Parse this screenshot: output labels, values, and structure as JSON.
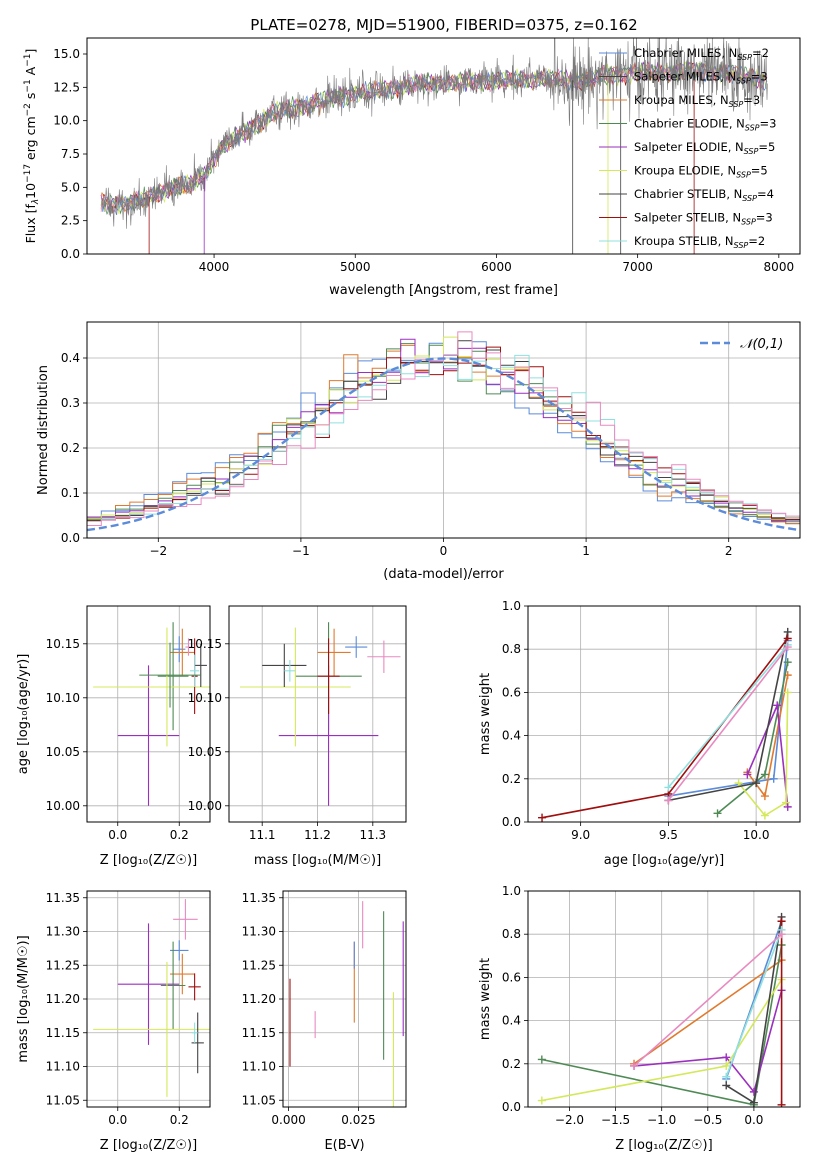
{
  "title": "PLATE=0278, MJD=51900, FIBERID=0375, z=0.162",
  "colors": [
    "#5b8bd9",
    "#e07a2e",
    "#4f8a55",
    "#9b2fbf",
    "#d4e85a",
    "#444444",
    "#a00e0e",
    "#8fe0df",
    "#e88ac0"
  ],
  "chart_data": [
    {
      "type": "line",
      "id": "spectrum",
      "xlabel": "wavelength [Angstrom, rest frame]",
      "ylabel_parts": [
        "Flux [f",
        "λ",
        "10",
        "−17",
        " erg cm",
        "−2",
        " s",
        "−1",
        " A",
        "−1",
        "]"
      ],
      "xlim": [
        3100,
        8150
      ],
      "ylim": [
        0,
        16.2
      ],
      "xticks": [
        4000,
        5000,
        6000,
        7000,
        8000
      ],
      "yticks": [
        0.0,
        2.5,
        5.0,
        7.5,
        10.0,
        12.5,
        15.0
      ],
      "x_range": [
        3200,
        7920
      ],
      "continuum_points": [
        [
          3200,
          3.8
        ],
        [
          3400,
          3.8
        ],
        [
          3550,
          4.3
        ],
        [
          3700,
          5.0
        ],
        [
          3850,
          5.2
        ],
        [
          3950,
          6.2
        ],
        [
          4050,
          8.0
        ],
        [
          4200,
          9.0
        ],
        [
          4400,
          10.5
        ],
        [
          4600,
          11.0
        ],
        [
          4800,
          11.6
        ],
        [
          5000,
          12.0
        ],
        [
          5200,
          12.3
        ],
        [
          5400,
          12.7
        ],
        [
          5600,
          12.8
        ],
        [
          5800,
          12.9
        ],
        [
          6000,
          13.0
        ],
        [
          6200,
          13.1
        ],
        [
          6400,
          13.1
        ],
        [
          6600,
          13.0
        ],
        [
          6800,
          13.4
        ],
        [
          7000,
          13.6
        ],
        [
          7200,
          13.6
        ],
        [
          7400,
          13.7
        ],
        [
          7600,
          13.6
        ],
        [
          7800,
          13.2
        ],
        [
          7920,
          13.0
        ]
      ],
      "legend": [
        {
          "name": "Chabrier MILES",
          "n": "2"
        },
        {
          "name": "Salpeter MILES",
          "n": "3"
        },
        {
          "name": "Kroupa MILES",
          "n": "3"
        },
        {
          "name": "Chabrier ELODIE",
          "n": "3"
        },
        {
          "name": "Salpeter ELODIE",
          "n": "5"
        },
        {
          "name": "Kroupa ELODIE",
          "n": "5"
        },
        {
          "name": "Chabrier STELIB",
          "n": "4"
        },
        {
          "name": "Salpeter STELIB",
          "n": "3"
        },
        {
          "name": "Kroupa STELIB",
          "n": "2"
        }
      ],
      "legend_colors": [
        "#5b8bd9",
        "#444444",
        "#e07a2e",
        "#4f8a55",
        "#9b2fbf",
        "#d4e85a",
        "#444444",
        "#a00e0e",
        "#8fe0df"
      ],
      "legend_position": "top-right",
      "legend_sub": "SSP"
    },
    {
      "type": "histogram",
      "id": "residuals",
      "xlabel": "(data-model)/error",
      "ylabel": "Normed distribution",
      "xlim": [
        -2.5,
        2.5
      ],
      "ylim": [
        0,
        0.48
      ],
      "xticks": [
        -2,
        -1,
        0,
        1,
        2
      ],
      "yticks": [
        0.0,
        0.1,
        0.2,
        0.3,
        0.4
      ],
      "bin_width": 0.1,
      "reference_label": "𝒩(0,1)",
      "legend_position": "top-right",
      "grid": true
    },
    {
      "type": "errorbar",
      "id": "age_vs_z",
      "xlabel": "Z [log₁₀(Z/Z☉)]",
      "ylabel": "age  [log₁₀(age/yr)]",
      "xlim": [
        -0.1,
        0.3
      ],
      "ylim": [
        9.985,
        10.185
      ],
      "xticks": [
        0.0,
        0.2
      ],
      "xticklabels": [
        "0.0",
        "0.2"
      ],
      "yticks": [
        10.0,
        10.05,
        10.1,
        10.15
      ],
      "yticklabels": [
        "10.00",
        "10.05",
        "10.10",
        "10.15"
      ],
      "points": [
        {
          "x": 0.2,
          "xerr": 0.02,
          "y": 10.145,
          "yerr": 0.012,
          "c": 0
        },
        {
          "x": 0.21,
          "xerr": 0.04,
          "y": 10.142,
          "yerr": 0.022,
          "c": 1
        },
        {
          "x": 0.18,
          "xerr": 0.05,
          "y": 10.12,
          "yerr": 0.05,
          "c": 2
        },
        {
          "x": 0.1,
          "xerr": 0.1,
          "y": 10.065,
          "yerr": 0.065,
          "c": 3
        },
        {
          "x": 0.16,
          "xerr": 0.24,
          "y": 10.11,
          "yerr": 0.055,
          "c": 4
        },
        {
          "x": 0.27,
          "xerr": 0.02,
          "y": 10.13,
          "yerr": 0.02,
          "c": 5
        },
        {
          "x": 0.25,
          "xerr": 0.01,
          "y": 10.12,
          "yerr": 0.035,
          "c": 6
        },
        {
          "x": 0.25,
          "xerr": 0.015,
          "y": 10.125,
          "yerr": 0.015,
          "c": 7
        },
        {
          "x": 0.23,
          "xerr": 0.01,
          "y": 10.147,
          "yerr": 0.008,
          "c": 8
        },
        {
          "x": 0.17,
          "xerr": 0.1,
          "y": 10.121,
          "yerr": 0.03,
          "c": 2
        }
      ]
    },
    {
      "type": "errorbar",
      "id": "age_vs_mass",
      "xlabel": "mass [log₁₀(M/M☉)]",
      "ylabel": "",
      "xlim": [
        11.04,
        11.36
      ],
      "ylim": [
        9.985,
        10.185
      ],
      "xticks": [
        11.1,
        11.2,
        11.3
      ],
      "xticklabels": [
        "11.1",
        "11.2",
        "11.3"
      ],
      "yticks": [
        10.0,
        10.05,
        10.1,
        10.15
      ],
      "yticklabels": [
        "10.00",
        "10.05",
        "10.10",
        "10.15"
      ],
      "points": [
        {
          "x": 11.27,
          "xerr": 0.02,
          "y": 10.147,
          "yerr": 0.01,
          "c": 0
        },
        {
          "x": 11.23,
          "xerr": 0.03,
          "y": 10.142,
          "yerr": 0.022,
          "c": 1
        },
        {
          "x": 11.22,
          "xerr": 0.06,
          "y": 10.12,
          "yerr": 0.05,
          "c": 2
        },
        {
          "x": 11.22,
          "xerr": 0.09,
          "y": 10.065,
          "yerr": 0.065,
          "c": 3
        },
        {
          "x": 11.16,
          "xerr": 0.1,
          "y": 10.11,
          "yerr": 0.055,
          "c": 4
        },
        {
          "x": 11.14,
          "xerr": 0.04,
          "y": 10.13,
          "yerr": 0.02,
          "c": 5
        },
        {
          "x": 11.22,
          "xerr": 0.02,
          "y": 10.12,
          "yerr": 0.035,
          "c": 6
        },
        {
          "x": 11.15,
          "xerr": 0.01,
          "y": 10.125,
          "yerr": 0.01,
          "c": 7
        },
        {
          "x": 11.32,
          "xerr": 0.03,
          "y": 10.138,
          "yerr": 0.015,
          "c": 8
        }
      ]
    },
    {
      "type": "line",
      "id": "weight_vs_age",
      "xlabel": "age  [log₁₀(age/yr)]",
      "ylabel": "mass weight",
      "xlim": [
        8.7,
        10.25
      ],
      "ylim": [
        0,
        1.0
      ],
      "xticks": [
        9.0,
        9.5,
        10.0
      ],
      "xticklabels": [
        "9.0",
        "9.5",
        "10.0"
      ],
      "yticks": [
        0.0,
        0.2,
        0.4,
        0.6,
        0.8,
        1.0
      ],
      "yticklabels": [
        "0.0",
        "0.2",
        "0.4",
        "0.6",
        "0.8",
        "1.0"
      ],
      "series": [
        {
          "c": 0,
          "pts": [
            [
              9.5,
              0.12
            ],
            [
              10.1,
              0.2
            ],
            [
              10.18,
              0.84
            ]
          ]
        },
        {
          "c": 1,
          "pts": [
            [
              9.95,
              0.23
            ],
            [
              10.05,
              0.12
            ],
            [
              10.18,
              0.68
            ]
          ]
        },
        {
          "c": 2,
          "pts": [
            [
              9.78,
              0.04
            ],
            [
              10.05,
              0.22
            ],
            [
              10.18,
              0.74
            ]
          ]
        },
        {
          "c": 3,
          "pts": [
            [
              9.95,
              0.22
            ],
            [
              10.12,
              0.54
            ],
            [
              10.18,
              0.07
            ]
          ]
        },
        {
          "c": 4,
          "pts": [
            [
              9.9,
              0.18
            ],
            [
              10.05,
              0.03
            ],
            [
              10.17,
              0.09
            ],
            [
              10.18,
              0.6
            ]
          ]
        },
        {
          "c": 5,
          "pts": [
            [
              9.5,
              0.1
            ],
            [
              10.0,
              0.18
            ],
            [
              10.18,
              0.88
            ]
          ]
        },
        {
          "c": 6,
          "pts": [
            [
              8.78,
              0.02
            ],
            [
              9.5,
              0.13
            ],
            [
              10.18,
              0.85
            ]
          ]
        },
        {
          "c": 7,
          "pts": [
            [
              9.5,
              0.16
            ],
            [
              10.18,
              0.82
            ]
          ]
        },
        {
          "c": 8,
          "pts": [
            [
              9.5,
              0.1
            ],
            [
              10.18,
              0.81
            ]
          ]
        }
      ]
    },
    {
      "type": "errorbar",
      "id": "mass_vs_z",
      "xlabel": "Z [log₁₀(Z/Z☉)]",
      "ylabel": "mass [log₁₀(M/M☉)]",
      "xlim": [
        -0.1,
        0.3
      ],
      "ylim": [
        11.04,
        11.36
      ],
      "xticks": [
        0.0,
        0.2
      ],
      "xticklabels": [
        "0.0",
        "0.2"
      ],
      "yticks": [
        11.05,
        11.1,
        11.15,
        11.2,
        11.25,
        11.3,
        11.35
      ],
      "yticklabels": [
        "11.05",
        "11.10",
        "11.15",
        "11.20",
        "11.25",
        "11.30",
        "11.35"
      ],
      "points": [
        {
          "x": 0.2,
          "xerr": 0.03,
          "y": 11.272,
          "yerr": 0.015,
          "c": 0
        },
        {
          "x": 0.21,
          "xerr": 0.04,
          "y": 11.237,
          "yerr": 0.03,
          "c": 1
        },
        {
          "x": 0.18,
          "xerr": 0.04,
          "y": 11.22,
          "yerr": 0.065,
          "c": 2
        },
        {
          "x": 0.1,
          "xerr": 0.1,
          "y": 11.222,
          "yerr": 0.09,
          "c": 3
        },
        {
          "x": 0.16,
          "xerr": 0.24,
          "y": 11.155,
          "yerr": 0.1,
          "c": 4
        },
        {
          "x": 0.26,
          "xerr": 0.02,
          "y": 11.135,
          "yerr": 0.045,
          "c": 5
        },
        {
          "x": 0.25,
          "xerr": 0.02,
          "y": 11.218,
          "yerr": 0.02,
          "c": 6
        },
        {
          "x": 0.25,
          "xerr": 0.01,
          "y": 11.15,
          "yerr": 0.015,
          "c": 7
        },
        {
          "x": 0.22,
          "xerr": 0.04,
          "y": 11.318,
          "yerr": 0.03,
          "c": 8
        }
      ]
    },
    {
      "type": "errorbar",
      "id": "mass_vs_ebv",
      "xlabel": "E(B-V)",
      "ylabel": "",
      "xlim": [
        -0.002,
        0.042
      ],
      "ylim": [
        11.04,
        11.36
      ],
      "xticks": [
        0.0,
        0.025
      ],
      "xticklabels": [
        "0.000",
        "0.025"
      ],
      "yticks": [
        11.05,
        11.1,
        11.15,
        11.2,
        11.25,
        11.3,
        11.35
      ],
      "yticklabels": [
        "11.05",
        "11.10",
        "11.15",
        "11.20",
        "11.25",
        "11.30",
        "11.35"
      ],
      "points": [
        {
          "x": 0.0005,
          "xerr": 0,
          "y": 11.165,
          "yerr": 0.065,
          "c": 6
        },
        {
          "x": 0.0095,
          "xerr": 0,
          "y": 11.162,
          "yerr": 0.02,
          "c": 8
        },
        {
          "x": 0.0235,
          "xerr": 0,
          "y": 11.225,
          "yerr": 0.06,
          "c": 1
        },
        {
          "x": 0.0265,
          "xerr": 0,
          "y": 11.31,
          "yerr": 0.035,
          "c": 8
        },
        {
          "x": 0.034,
          "xerr": 0,
          "y": 11.22,
          "yerr": 0.11,
          "c": 2
        },
        {
          "x": 0.0375,
          "xerr": 0,
          "y": 11.115,
          "yerr": 0.095,
          "c": 4
        },
        {
          "x": 0.041,
          "xerr": 0,
          "y": 11.23,
          "yerr": 0.085,
          "c": 3
        },
        {
          "x": 0.0235,
          "xerr": 0,
          "y": 11.265,
          "yerr": 0.02,
          "c": 0
        }
      ]
    },
    {
      "type": "line",
      "id": "weight_vs_z",
      "xlabel": "Z [log₁₀(Z/Z☉)]",
      "ylabel": "mass weight",
      "xlim": [
        -2.45,
        0.5
      ],
      "ylim": [
        0,
        1.0
      ],
      "xticks": [
        -2.0,
        -1.5,
        -1.0,
        -0.5,
        0.0
      ],
      "xticklabels": [
        "−2.0",
        "−1.5",
        "−1.0",
        "−0.5",
        "0.0"
      ],
      "yticks": [
        0.0,
        0.2,
        0.4,
        0.6,
        0.8,
        1.0
      ],
      "yticklabels": [
        "0.0",
        "0.2",
        "0.4",
        "0.6",
        "0.8",
        "1.0"
      ],
      "series": [
        {
          "c": 0,
          "pts": [
            [
              -0.3,
              0.13
            ],
            [
              0.3,
              0.86
            ]
          ]
        },
        {
          "c": 1,
          "pts": [
            [
              -1.3,
              0.2
            ],
            [
              0.3,
              0.68
            ]
          ]
        },
        {
          "c": 2,
          "pts": [
            [
              -2.3,
              0.22
            ],
            [
              0.0,
              0.01
            ],
            [
              0.3,
              0.75
            ]
          ]
        },
        {
          "c": 3,
          "pts": [
            [
              -1.3,
              0.19
            ],
            [
              -0.3,
              0.23
            ],
            [
              0.0,
              0.07
            ],
            [
              0.3,
              0.54
            ]
          ]
        },
        {
          "c": 4,
          "pts": [
            [
              -2.3,
              0.03
            ],
            [
              -0.3,
              0.19
            ],
            [
              0.3,
              0.59
            ]
          ]
        },
        {
          "c": 5,
          "pts": [
            [
              -0.3,
              0.1
            ],
            [
              0.0,
              0.02
            ],
            [
              0.3,
              0.88
            ]
          ]
        },
        {
          "c": 6,
          "pts": [
            [
              0.3,
              0.01
            ],
            [
              0.3,
              0.86
            ]
          ]
        },
        {
          "c": 7,
          "pts": [
            [
              -0.3,
              0.14
            ],
            [
              0.3,
              0.82
            ]
          ]
        },
        {
          "c": 8,
          "pts": [
            [
              -1.3,
              0.19
            ],
            [
              0.3,
              0.8
            ]
          ]
        }
      ]
    }
  ]
}
